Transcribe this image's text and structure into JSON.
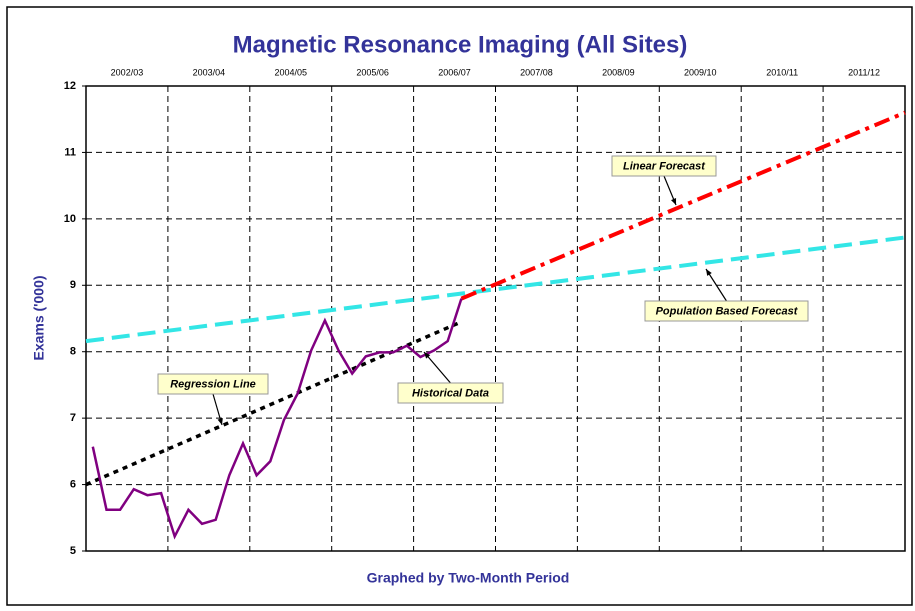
{
  "chart_data": {
    "type": "line",
    "title": "Magnetic Resonance Imaging (All Sites)",
    "x_label": "Graphed by Two-Month Period",
    "y_label": "Exams ('000)",
    "categories": [
      "2002/03",
      "2003/04",
      "2004/05",
      "2005/06",
      "2006/07",
      "2007/08",
      "2008/09",
      "2009/10",
      "2010/11",
      "2011/12"
    ],
    "xlim": [
      0,
      60
    ],
    "ylim": [
      5,
      12
    ],
    "yticks": [
      5,
      6,
      7,
      8,
      9,
      10,
      11,
      12
    ],
    "grid": true,
    "series": [
      {
        "name": "Historical Data",
        "color": "#800080",
        "dash": "solid",
        "x": [
          0.5,
          1.5,
          2.5,
          3.5,
          4.5,
          5.5,
          6.5,
          7.5,
          8.5,
          9.5,
          10.5,
          11.5,
          12.5,
          13.5,
          14.5,
          15.5,
          16.5,
          17.5,
          18.5,
          19.5,
          20.5,
          21.5,
          22.5,
          23.5,
          24.5,
          25.5,
          26.5,
          27.5
        ],
        "values": [
          6.57,
          5.62,
          5.62,
          5.93,
          5.84,
          5.87,
          5.22,
          5.62,
          5.41,
          5.47,
          6.14,
          6.62,
          6.14,
          6.35,
          6.97,
          7.37,
          8.02,
          8.47,
          8.02,
          7.67,
          7.93,
          7.99,
          7.99,
          8.09,
          7.92,
          8.02,
          8.16,
          8.8
        ]
      },
      {
        "name": "Regression Line",
        "color": "#000000",
        "dash": "dotted",
        "x": [
          0,
          27.5
        ],
        "values": [
          6.0,
          8.45
        ]
      },
      {
        "name": "Linear Forecast",
        "color": "#ff0000",
        "dash": "dash-dot",
        "x": [
          27.5,
          60
        ],
        "values": [
          8.8,
          11.6
        ]
      },
      {
        "name": "Population Based Forecast",
        "color": "#33e6e6",
        "dash": "dashed",
        "x": [
          0,
          60
        ],
        "values": [
          8.16,
          9.72
        ]
      }
    ]
  }
}
